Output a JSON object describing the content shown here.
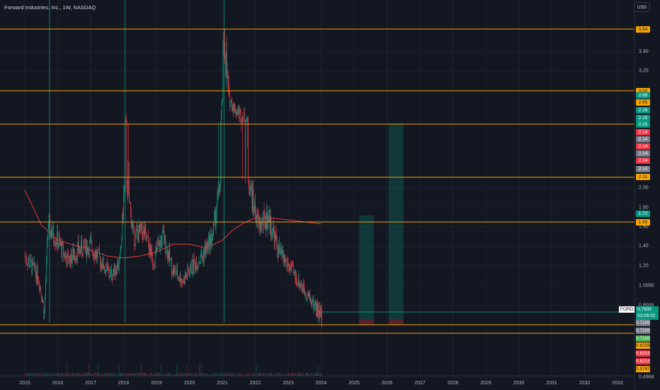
{
  "header": {
    "title": "Forward Industries, Inc., 1W, NASDAQ",
    "currency": "USD"
  },
  "colors": {
    "background": "#131722",
    "up": "#089981",
    "down": "#f23645",
    "hline": "#f7a600",
    "ma": "#e53935",
    "last_line": "#22ab94"
  },
  "price_axis": {
    "ticks": [
      {
        "label": "3.40",
        "value": 3.4
      },
      {
        "label": "3.20",
        "value": 3.2
      },
      {
        "label": "2.00",
        "value": 2.0
      },
      {
        "label": "1.80",
        "value": 1.8
      },
      {
        "label": "1.60",
        "value": 1.6
      },
      {
        "label": "1.40",
        "value": 1.4
      },
      {
        "label": "1.20",
        "value": 1.2
      },
      {
        "label": "1.0000",
        "value": 1.0
      },
      {
        "label": "0.8000",
        "value": 0.8
      },
      {
        "label": "0.4968",
        "value": 0.4968
      }
    ]
  },
  "badges": [
    {
      "label": "3.64",
      "color": "#f7a600"
    },
    {
      "label": "3.00",
      "color": "#f7a600"
    },
    {
      "label": "2.69",
      "color": "#089981"
    },
    {
      "label": "2.65",
      "color": "#f7a600"
    },
    {
      "label": "2.16",
      "color": "#089981"
    },
    {
      "label": "2.15",
      "color": "#089981"
    },
    {
      "label": "2.15",
      "color": "#089981"
    },
    {
      "label": "2.14",
      "color": "#f23645"
    },
    {
      "label": "2.14",
      "color": "#787b86"
    },
    {
      "label": "2.14",
      "color": "#f23645"
    },
    {
      "label": "2.14",
      "color": "#787b86"
    },
    {
      "label": "2.14",
      "color": "#f23645"
    },
    {
      "label": "2.14",
      "color": "#787b86"
    },
    {
      "label": "2.11",
      "color": "#f7a600"
    },
    {
      "label": "1.72",
      "color": "#089981"
    },
    {
      "label": "1.65",
      "color": "#f7a600"
    },
    {
      "label": "0.7100",
      "color": "#787b86"
    },
    {
      "label": "0.7100",
      "color": "#787b86"
    },
    {
      "label": "0.7100",
      "color": "#4caf50"
    },
    {
      "label": "0.6239",
      "color": "#f7a600"
    },
    {
      "label": "0.6215",
      "color": "#f23645"
    },
    {
      "label": "0.6215",
      "color": "#f23645"
    },
    {
      "label": "0.5797",
      "color": "#f7a600"
    }
  ],
  "last": {
    "symbol": "FORD",
    "price": "0.7500",
    "countdown": "03:08:02"
  },
  "time_axis": {
    "labels": [
      "2015",
      "2016",
      "2017",
      "2018",
      "2019",
      "2020",
      "2021",
      "2022",
      "2023",
      "2024",
      "2025",
      "2026",
      "2027",
      "2028",
      "2029",
      "2030",
      "2031",
      "2032",
      "2033"
    ]
  },
  "chart_data": {
    "type": "candlestick",
    "interval": "1W",
    "x_range": [
      2015,
      2033
    ],
    "y_range": [
      0.4968,
      3.64
    ],
    "horizontal_levels": [
      3.64,
      3.0,
      2.15,
      2.11,
      1.65,
      0.71,
      0.62
    ],
    "series": [
      {
        "name": "FORD",
        "values": [
          [
            2015.0,
            1.3
          ],
          [
            2015.4,
            1.1
          ],
          [
            2015.6,
            0.75
          ],
          [
            2015.7,
            1.6
          ],
          [
            2016.0,
            1.45
          ],
          [
            2016.3,
            1.25
          ],
          [
            2016.6,
            1.35
          ],
          [
            2017.0,
            1.4
          ],
          [
            2017.3,
            1.25
          ],
          [
            2017.6,
            1.1
          ],
          [
            2017.9,
            1.25
          ],
          [
            2018.05,
            2.2
          ],
          [
            2018.3,
            1.5
          ],
          [
            2018.6,
            1.55
          ],
          [
            2018.9,
            1.25
          ],
          [
            2019.2,
            1.5
          ],
          [
            2019.5,
            1.15
          ],
          [
            2019.8,
            1.05
          ],
          [
            2020.1,
            1.2
          ],
          [
            2020.4,
            1.3
          ],
          [
            2020.7,
            1.5
          ],
          [
            2020.95,
            2.1
          ],
          [
            2021.05,
            3.6
          ],
          [
            2021.2,
            2.8
          ],
          [
            2021.4,
            2.5
          ],
          [
            2021.7,
            2.3
          ],
          [
            2021.9,
            1.9
          ],
          [
            2022.1,
            1.6
          ],
          [
            2022.4,
            1.7
          ],
          [
            2022.7,
            1.35
          ],
          [
            2023.0,
            1.2
          ],
          [
            2023.4,
            1.0
          ],
          [
            2023.7,
            0.85
          ],
          [
            2024.0,
            0.75
          ]
        ]
      },
      {
        "name": "MA",
        "values": [
          [
            2015.0,
            1.98
          ],
          [
            2015.5,
            1.62
          ],
          [
            2016.0,
            1.46
          ],
          [
            2016.5,
            1.41
          ],
          [
            2017.0,
            1.36
          ],
          [
            2017.5,
            1.3
          ],
          [
            2018.0,
            1.28
          ],
          [
            2018.5,
            1.3
          ],
          [
            2019.0,
            1.34
          ],
          [
            2019.5,
            1.42
          ],
          [
            2020.0,
            1.42
          ],
          [
            2020.5,
            1.38
          ],
          [
            2021.0,
            1.46
          ],
          [
            2021.3,
            1.56
          ],
          [
            2021.6,
            1.63
          ],
          [
            2021.9,
            1.68
          ],
          [
            2022.3,
            1.7
          ],
          [
            2022.8,
            1.68
          ],
          [
            2023.3,
            1.66
          ],
          [
            2024.0,
            1.63
          ]
        ]
      }
    ],
    "projection_boxes": [
      {
        "x0": 2025.15,
        "x1": 2025.6,
        "y_top": 1.72,
        "y_bottom": 0.71
      },
      {
        "x0": 2026.05,
        "x1": 2026.5,
        "y_top": 2.16,
        "y_bottom": 0.71
      }
    ]
  }
}
